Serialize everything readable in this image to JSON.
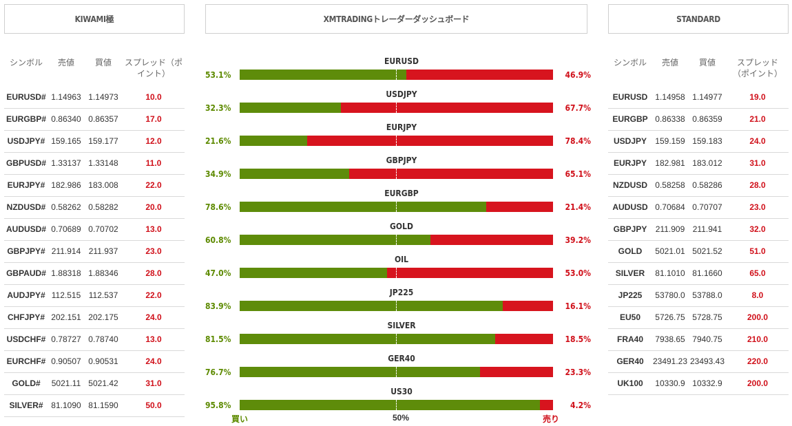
{
  "headers": {
    "left": "KIWAMI極",
    "center": "XMTRADINGトレーダーダッシュボード",
    "right": "STANDARD"
  },
  "columns": {
    "symbol": "シンボル",
    "bid": "売値",
    "ask": "買値",
    "spread_left_line1": "スプレッド（ポ",
    "spread_left_line2": "イント）",
    "spread_right_line1": "スプレッド",
    "spread_right_line2": "（ポイント）"
  },
  "kiwami_rows": [
    {
      "symbol": "EURUSD#",
      "bid": "1.14963",
      "ask": "1.14973",
      "spread": "10.0"
    },
    {
      "symbol": "EURGBP#",
      "bid": "0.86340",
      "ask": "0.86357",
      "spread": "17.0"
    },
    {
      "symbol": "USDJPY#",
      "bid": "159.165",
      "ask": "159.177",
      "spread": "12.0"
    },
    {
      "symbol": "GBPUSD#",
      "bid": "1.33137",
      "ask": "1.33148",
      "spread": "11.0"
    },
    {
      "symbol": "EURJPY#",
      "bid": "182.986",
      "ask": "183.008",
      "spread": "22.0"
    },
    {
      "symbol": "NZDUSD#",
      "bid": "0.58262",
      "ask": "0.58282",
      "spread": "20.0"
    },
    {
      "symbol": "AUDUSD#",
      "bid": "0.70689",
      "ask": "0.70702",
      "spread": "13.0"
    },
    {
      "symbol": "GBPJPY#",
      "bid": "211.914",
      "ask": "211.937",
      "spread": "23.0"
    },
    {
      "symbol": "GBPAUD#",
      "bid": "1.88318",
      "ask": "1.88346",
      "spread": "28.0"
    },
    {
      "symbol": "AUDJPY#",
      "bid": "112.515",
      "ask": "112.537",
      "spread": "22.0"
    },
    {
      "symbol": "CHFJPY#",
      "bid": "202.151",
      "ask": "202.175",
      "spread": "24.0"
    },
    {
      "symbol": "USDCHF#",
      "bid": "0.78727",
      "ask": "0.78740",
      "spread": "13.0"
    },
    {
      "symbol": "EURCHF#",
      "bid": "0.90507",
      "ask": "0.90531",
      "spread": "24.0"
    },
    {
      "symbol": "GOLD#",
      "bid": "5021.11",
      "ask": "5021.42",
      "spread": "31.0"
    },
    {
      "symbol": "SILVER#",
      "bid": "81.1090",
      "ask": "81.1590",
      "spread": "50.0"
    }
  ],
  "standard_rows": [
    {
      "symbol": "EURUSD",
      "bid": "1.14958",
      "ask": "1.14977",
      "spread": "19.0"
    },
    {
      "symbol": "EURGBP",
      "bid": "0.86338",
      "ask": "0.86359",
      "spread": "21.0"
    },
    {
      "symbol": "USDJPY",
      "bid": "159.159",
      "ask": "159.183",
      "spread": "24.0"
    },
    {
      "symbol": "EURJPY",
      "bid": "182.981",
      "ask": "183.012",
      "spread": "31.0"
    },
    {
      "symbol": "NZDUSD",
      "bid": "0.58258",
      "ask": "0.58286",
      "spread": "28.0"
    },
    {
      "symbol": "AUDUSD",
      "bid": "0.70684",
      "ask": "0.70707",
      "spread": "23.0"
    },
    {
      "symbol": "GBPJPY",
      "bid": "211.909",
      "ask": "211.941",
      "spread": "32.0"
    },
    {
      "symbol": "GOLD",
      "bid": "5021.01",
      "ask": "5021.52",
      "spread": "51.0"
    },
    {
      "symbol": "SILVER",
      "bid": "81.1010",
      "ask": "81.1660",
      "spread": "65.0"
    },
    {
      "symbol": "JP225",
      "bid": "53780.0",
      "ask": "53788.0",
      "spread": "8.0"
    },
    {
      "symbol": "EU50",
      "bid": "5726.75",
      "ask": "5728.75",
      "spread": "200.0"
    },
    {
      "symbol": "FRA40",
      "bid": "7938.65",
      "ask": "7940.75",
      "spread": "210.0"
    },
    {
      "symbol": "GER40",
      "bid": "23491.23",
      "ask": "23493.43",
      "spread": "220.0"
    },
    {
      "symbol": "UK100",
      "bid": "10330.9",
      "ask": "10332.9",
      "spread": "200.0"
    }
  ],
  "sentiment": [
    {
      "symbol": "EURUSD",
      "buy_pct": 53.1,
      "buy": "53.1%",
      "sell": "46.9%"
    },
    {
      "symbol": "USDJPY",
      "buy_pct": 32.3,
      "buy": "32.3%",
      "sell": "67.7%"
    },
    {
      "symbol": "EURJPY",
      "buy_pct": 21.6,
      "buy": "21.6%",
      "sell": "78.4%"
    },
    {
      "symbol": "GBPJPY",
      "buy_pct": 34.9,
      "buy": "34.9%",
      "sell": "65.1%"
    },
    {
      "symbol": "EURGBP",
      "buy_pct": 78.6,
      "buy": "78.6%",
      "sell": "21.4%"
    },
    {
      "symbol": "GOLD",
      "buy_pct": 60.8,
      "buy": "60.8%",
      "sell": "39.2%"
    },
    {
      "symbol": "OIL",
      "buy_pct": 47.0,
      "buy": "47.0%",
      "sell": "53.0%"
    },
    {
      "symbol": "JP225",
      "buy_pct": 83.9,
      "buy": "83.9%",
      "sell": "16.1%"
    },
    {
      "symbol": "SILVER",
      "buy_pct": 81.5,
      "buy": "81.5%",
      "sell": "18.5%"
    },
    {
      "symbol": "GER40",
      "buy_pct": 76.7,
      "buy": "76.7%",
      "sell": "23.3%"
    },
    {
      "symbol": "US30",
      "buy_pct": 95.8,
      "buy": "95.8%",
      "sell": "4.2%"
    }
  ],
  "footer": {
    "buy": "買い",
    "mid": "50%",
    "sell": "売り"
  },
  "colors": {
    "buy": "#5e8c0a",
    "sell": "#d7141e",
    "spread": "#d0101a"
  }
}
